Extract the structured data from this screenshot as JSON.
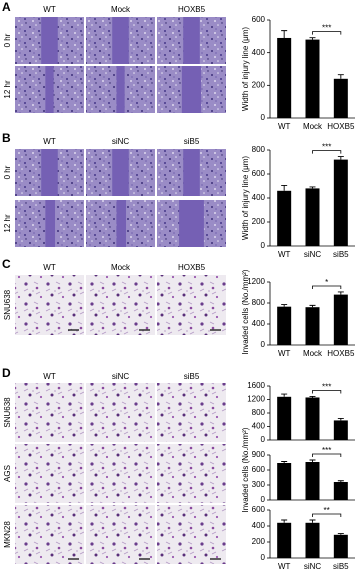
{
  "panels": [
    {
      "label": "A",
      "column_headers": [
        "WT",
        "Mock",
        "HOXB5"
      ],
      "row_labels": [
        "0 hr",
        "12 hr"
      ]
    },
    {
      "label": "B",
      "column_headers": [
        "WT",
        "siNC",
        "siB5"
      ],
      "row_labels": [
        "0 hr",
        "12 hr"
      ]
    },
    {
      "label": "C",
      "column_headers": [
        "WT",
        "Mock",
        "HOXB5"
      ],
      "row_labels": [
        "SNU638"
      ]
    },
    {
      "label": "D",
      "column_headers": [
        "WT",
        "siNC",
        "siB5"
      ],
      "row_labels": [
        "SNU638",
        "AGS",
        "MKN28"
      ]
    }
  ],
  "chart_data": [
    {
      "type": "bar",
      "y_label": "Width of injury line (μm)",
      "categories": [
        "WT",
        "Mock",
        "HOXB5"
      ],
      "values": [
        490,
        480,
        240
      ],
      "errors": [
        45,
        12,
        25
      ],
      "color": "#000000",
      "ylim": [
        0,
        600
      ],
      "yticks": [
        0,
        200,
        400,
        600
      ],
      "significance": "***"
    },
    {
      "type": "bar",
      "y_label": "Width of injury line (μm)",
      "categories": [
        "WT",
        "siNC",
        "siB5"
      ],
      "values": [
        460,
        480,
        720
      ],
      "errors": [
        45,
        12,
        25
      ],
      "color": "#000000",
      "ylim": [
        0,
        800
      ],
      "yticks": [
        0,
        200,
        400,
        600,
        800
      ],
      "significance": "***"
    },
    {
      "type": "bar",
      "y_label": "Invaded cells (No./mm²)",
      "categories": [
        "WT",
        "Mock",
        "HOXB5"
      ],
      "values": [
        730,
        720,
        960
      ],
      "errors": [
        40,
        35,
        50
      ],
      "color": "#000000",
      "ylim": [
        0,
        1200
      ],
      "yticks": [
        0,
        400,
        800,
        1200
      ],
      "significance": "*"
    },
    {
      "type": "bar",
      "categories": [
        null,
        null,
        null
      ],
      "values": [
        1280,
        1260,
        580
      ],
      "errors": [
        80,
        30,
        60
      ],
      "color": "#000000",
      "ylim": [
        0,
        1600
      ],
      "yticks": [
        0,
        400,
        800,
        1200,
        1600
      ],
      "significance": "***"
    },
    {
      "type": "bar",
      "y_label": "Invaded cells (No./mm²)",
      "categories": [
        null,
        null,
        null
      ],
      "values": [
        740,
        760,
        360
      ],
      "errors": [
        30,
        40,
        25
      ],
      "color": "#000000",
      "ylim": [
        0,
        900
      ],
      "yticks": [
        0,
        300,
        600,
        900
      ],
      "significance": "***"
    },
    {
      "type": "bar",
      "categories": [
        "WT",
        "siNC",
        "siB5"
      ],
      "values": [
        440,
        440,
        290
      ],
      "errors": [
        35,
        35,
        15
      ],
      "color": "#000000",
      "ylim": [
        0,
        600
      ],
      "yticks": [
        0,
        200,
        400,
        600
      ],
      "significance": "**"
    }
  ]
}
